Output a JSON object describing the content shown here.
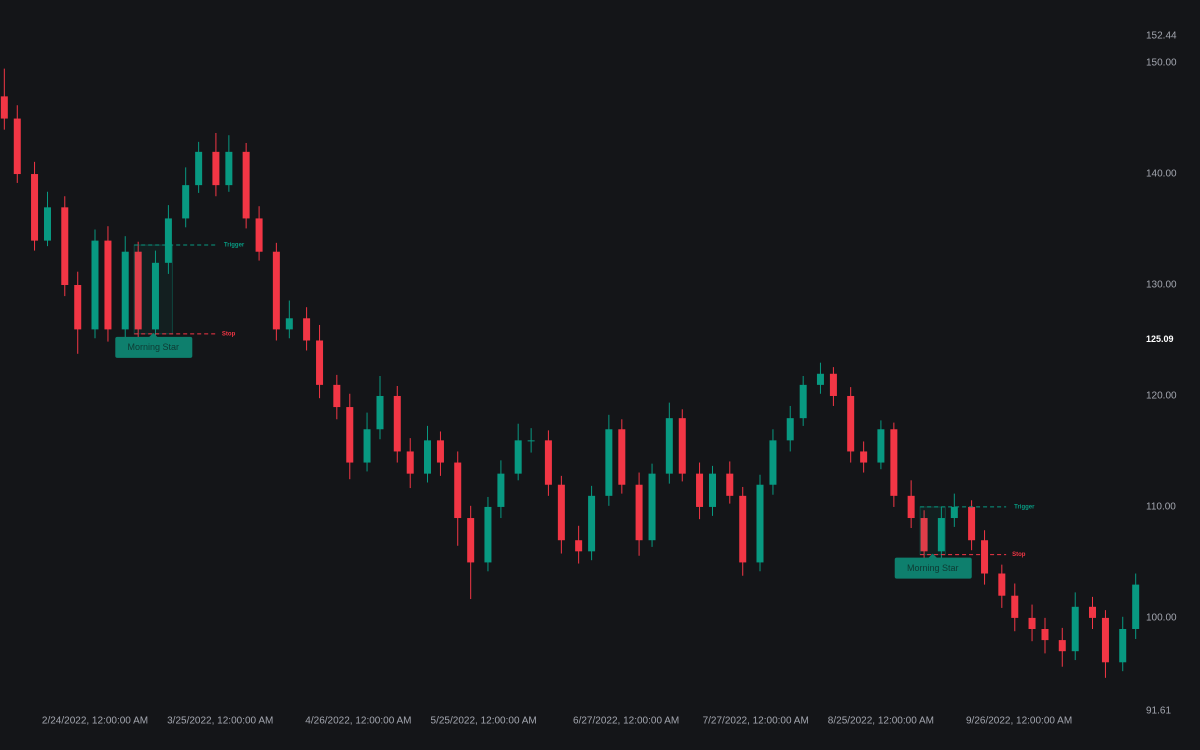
{
  "chart_data": {
    "type": "candlestick",
    "x": [
      "2022-02-03",
      "2022-02-06",
      "2022-02-10",
      "2022-02-13",
      "2022-02-17",
      "2022-02-20",
      "2022-02-24",
      "2022-02-27",
      "2022-03-03",
      "2022-03-06",
      "2022-03-10",
      "2022-03-13",
      "2022-03-17",
      "2022-03-20",
      "2022-03-24",
      "2022-03-27",
      "2022-03-31",
      "2022-04-03",
      "2022-04-07",
      "2022-04-10",
      "2022-04-14",
      "2022-04-17",
      "2022-04-21",
      "2022-04-24",
      "2022-04-28",
      "2022-05-01",
      "2022-05-05",
      "2022-05-08",
      "2022-05-12",
      "2022-05-15",
      "2022-05-19",
      "2022-05-22",
      "2022-05-26",
      "2022-05-29",
      "2022-06-02",
      "2022-06-05",
      "2022-06-09",
      "2022-06-12",
      "2022-06-16",
      "2022-06-19",
      "2022-06-23",
      "2022-06-26",
      "2022-06-30",
      "2022-07-03",
      "2022-07-07",
      "2022-07-10",
      "2022-07-14",
      "2022-07-17",
      "2022-07-21",
      "2022-07-24",
      "2022-07-28",
      "2022-07-31",
      "2022-08-04",
      "2022-08-07",
      "2022-08-11",
      "2022-08-14",
      "2022-08-18",
      "2022-08-21",
      "2022-08-25",
      "2022-08-28",
      "2022-09-01",
      "2022-09-04",
      "2022-09-08",
      "2022-09-11",
      "2022-09-15",
      "2022-09-18",
      "2022-09-22",
      "2022-09-25",
      "2022-09-29",
      "2022-10-02",
      "2022-10-06",
      "2022-10-09",
      "2022-10-13",
      "2022-10-16",
      "2022-10-20",
      "2022-10-23"
    ],
    "open": [
      147,
      145,
      140,
      134,
      137,
      130,
      126,
      134,
      126,
      133,
      126,
      132,
      136,
      139,
      142,
      139,
      142,
      136,
      133,
      126,
      127,
      125,
      121,
      119,
      114,
      117,
      120,
      115,
      113,
      116,
      114,
      109,
      105,
      110,
      113,
      116,
      116,
      112,
      107,
      106,
      111,
      117,
      112,
      107,
      113,
      118,
      113,
      110,
      113,
      111,
      105,
      112,
      116,
      118,
      121,
      122,
      120,
      115,
      114,
      117,
      111,
      109,
      106,
      109,
      110,
      107,
      104,
      102,
      100,
      99,
      98,
      97,
      101,
      100,
      96,
      99
    ],
    "high": [
      149.5,
      146.2,
      141.1,
      138.4,
      138.0,
      131.2,
      135.0,
      135.3,
      134.4,
      133.9,
      133.1,
      137.2,
      140.6,
      142.9,
      143.7,
      143.5,
      142.8,
      137.1,
      133.8,
      128.6,
      128.0,
      126.4,
      121.9,
      120.2,
      118.5,
      121.8,
      120.9,
      116.2,
      117.3,
      116.8,
      115.0,
      110.1,
      110.9,
      114.2,
      117.5,
      117.1,
      116.9,
      112.8,
      108.3,
      111.9,
      118.3,
      117.9,
      113.1,
      113.9,
      119.4,
      118.8,
      114.0,
      113.7,
      114.1,
      111.8,
      112.9,
      117.0,
      119.1,
      121.8,
      123.0,
      122.6,
      120.8,
      115.9,
      117.8,
      117.6,
      112.4,
      109.7,
      110.0,
      111.2,
      110.6,
      107.9,
      104.8,
      103.1,
      101.2,
      100.0,
      99.1,
      102.3,
      101.9,
      100.7,
      100.1,
      104.0
    ],
    "low": [
      144.0,
      139.2,
      133.1,
      133.5,
      129.0,
      123.8,
      125.2,
      124.9,
      125.3,
      125.1,
      125.4,
      131.0,
      135.2,
      138.3,
      138.0,
      138.4,
      135.1,
      132.2,
      125.0,
      125.2,
      124.1,
      119.8,
      117.9,
      112.5,
      113.2,
      116.1,
      114.0,
      111.7,
      112.2,
      112.8,
      106.5,
      101.7,
      104.2,
      109.0,
      112.4,
      114.9,
      111.0,
      105.8,
      104.9,
      105.2,
      110.1,
      111.2,
      105.6,
      106.4,
      112.1,
      112.3,
      108.9,
      109.2,
      110.3,
      103.8,
      104.2,
      111.1,
      115.0,
      117.3,
      120.2,
      119.1,
      114.0,
      113.1,
      113.4,
      110.0,
      108.1,
      104.9,
      105.3,
      108.2,
      106.1,
      103.0,
      100.9,
      98.8,
      97.9,
      96.8,
      95.6,
      96.2,
      99.0,
      94.6,
      95.2,
      98.1
    ],
    "close": [
      145,
      140,
      134,
      137,
      130,
      126,
      134,
      126,
      133,
      126,
      132,
      136,
      139,
      142,
      139,
      142,
      136,
      133,
      126,
      127,
      125,
      121,
      119,
      114,
      117,
      120,
      115,
      113,
      116,
      114,
      109,
      105,
      110,
      113,
      116,
      116,
      112,
      107,
      106,
      111,
      117,
      112,
      107,
      113,
      118,
      113,
      110,
      113,
      111,
      105,
      112,
      116,
      118,
      121,
      122,
      120,
      115,
      114,
      117,
      111,
      109,
      106,
      109,
      110,
      107,
      104,
      102,
      100,
      99,
      98,
      97,
      101,
      100,
      96,
      99,
      103
    ],
    "up_color": "#089981",
    "down_color": "#f23645",
    "xlim": [
      "2022-02-02",
      "2022-10-24"
    ],
    "xticks": [
      {
        "value": "2022-02-24",
        "label": "2/24/2022, 12:00:00 AM"
      },
      {
        "value": "2022-03-25",
        "label": "3/25/2022, 12:00:00 AM"
      },
      {
        "value": "2022-04-26",
        "label": "4/26/2022, 12:00:00 AM"
      },
      {
        "value": "2022-05-25",
        "label": "5/25/2022, 12:00:00 AM"
      },
      {
        "value": "2022-06-27",
        "label": "6/27/2022, 12:00:00 AM"
      },
      {
        "value": "2022-07-27",
        "label": "7/27/2022, 12:00:00 AM"
      },
      {
        "value": "2022-08-25",
        "label": "8/25/2022, 12:00:00 AM"
      },
      {
        "value": "2022-09-26",
        "label": "9/26/2022, 12:00:00 AM"
      }
    ],
    "ylim": [
      91.61,
      152.44
    ],
    "yticks": [
      91.61,
      {
        "value": 100,
        "label": "100.00"
      },
      {
        "value": 110,
        "label": "110.00"
      },
      {
        "value": 120,
        "label": "120.00"
      },
      {
        "value": 130,
        "label": "130.00"
      },
      {
        "value": 140,
        "label": "140.00"
      },
      {
        "value": 150,
        "label": "150.00"
      },
      152.44
    ],
    "price_label": 125.09,
    "patterns": [
      {
        "label": "Morning Star",
        "start": "2022-03-06",
        "end": "2022-03-13",
        "line_end": "2022-03-24",
        "trigger": 133.6,
        "trigger_label": "Trigger",
        "stop": 125.6,
        "stop_label": "Stop"
      },
      {
        "label": "Morning Star",
        "start": "2022-09-04",
        "end": "2022-09-08",
        "line_end": "2022-09-23",
        "trigger": 110.0,
        "trigger_label": "Trigger",
        "stop": 105.7,
        "stop_label": "Stop"
      }
    ]
  }
}
